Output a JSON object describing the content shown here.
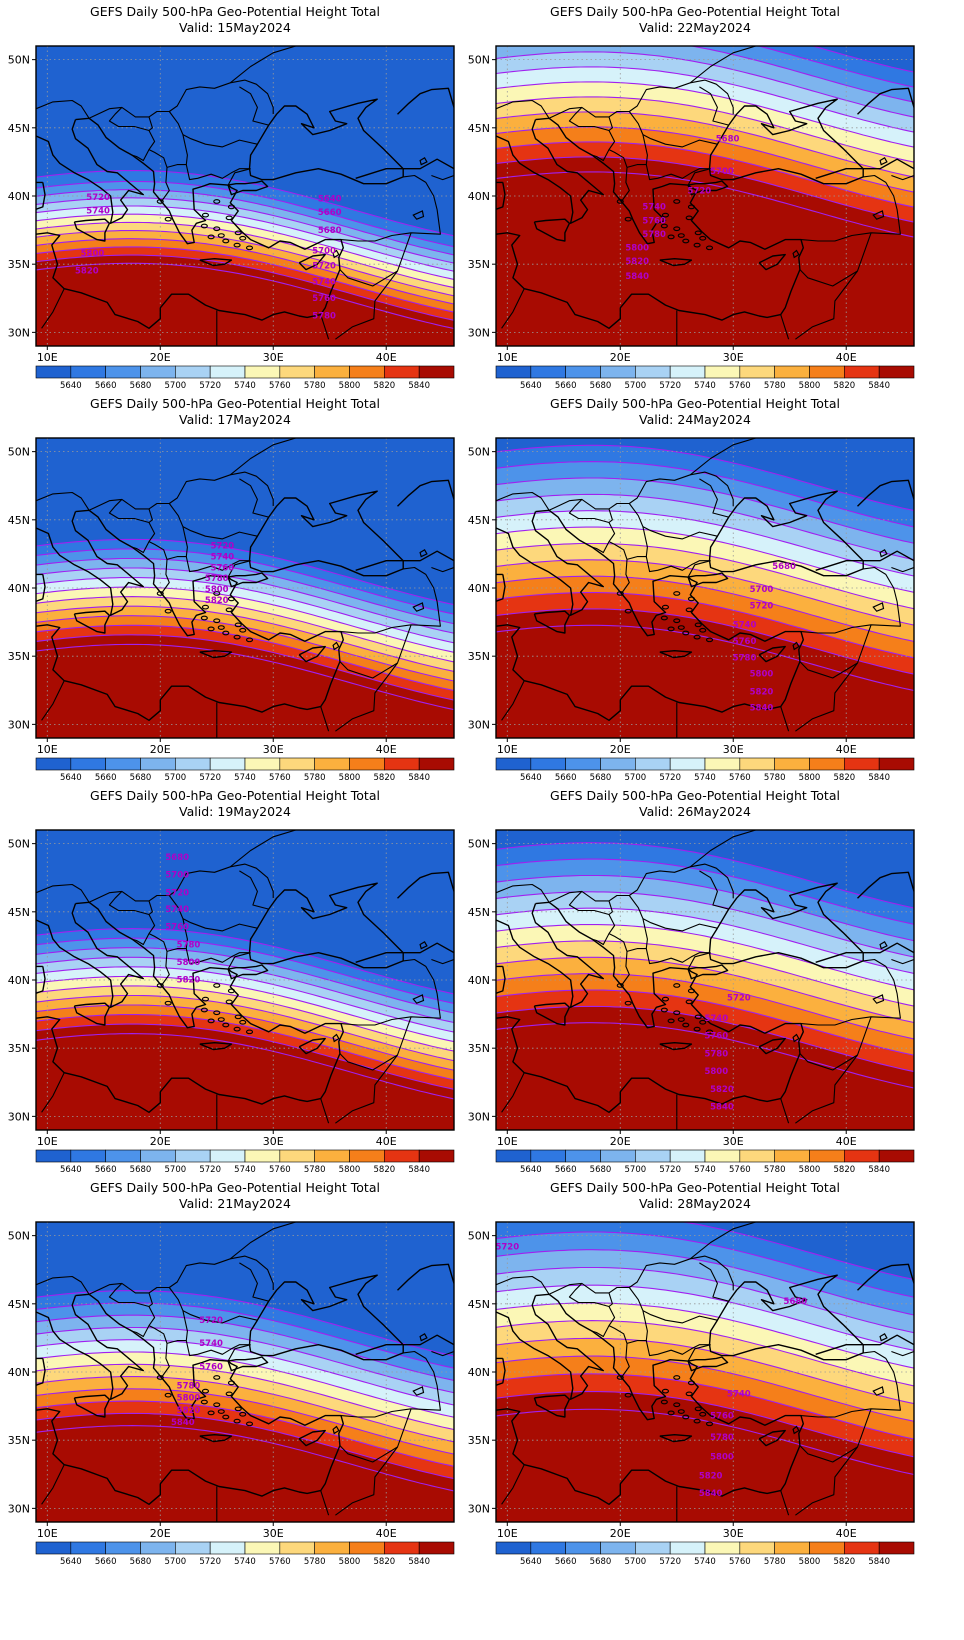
{
  "title_line1": "GEFS Daily 500-hPa Geo-Potential Height Total",
  "valid_prefix": "Valid:",
  "lat_ticks": [
    {
      "v": 50,
      "t": "50N"
    },
    {
      "v": 45,
      "t": "45N"
    },
    {
      "v": 40,
      "t": "40N"
    },
    {
      "v": 35,
      "t": "35N"
    },
    {
      "v": 30,
      "t": "30N"
    }
  ],
  "lon_ticks": [
    {
      "v": 10,
      "t": "10E"
    },
    {
      "v": 20,
      "t": "20E"
    },
    {
      "v": 30,
      "t": "30E"
    },
    {
      "v": 40,
      "t": "40E"
    }
  ],
  "map_extent": {
    "lon": [
      9,
      46
    ],
    "lat": [
      29,
      51
    ]
  },
  "colorbar": {
    "levels": [
      "5640",
      "5660",
      "5680",
      "5700",
      "5720",
      "5740",
      "5760",
      "5780",
      "5800",
      "5820",
      "5840"
    ],
    "colors": [
      "#1f62d0",
      "#2f78e2",
      "#4d93ea",
      "#7db4ee",
      "#a9d2f4",
      "#d6f2fa",
      "#fbf7b6",
      "#fdd87c",
      "#fbb03e",
      "#f57f1a",
      "#e53412",
      "#a80b02"
    ]
  },
  "contour_color": "#a020f0",
  "panels": [
    {
      "date": "15May2024",
      "offsets": [
        32.8,
        33.4,
        34.0,
        34.6,
        35.2,
        35.8,
        36.4,
        37.0,
        37.6,
        38.2,
        38.8,
        39.6
      ],
      "labels": [
        {
          "t": "5720",
          "lon": 14.5,
          "lat": 39.7
        },
        {
          "t": "5740",
          "lon": 14.5,
          "lat": 38.7
        },
        {
          "t": "5800",
          "lon": 14.0,
          "lat": 35.6
        },
        {
          "t": "5820",
          "lon": 13.5,
          "lat": 34.3
        },
        {
          "t": "5640",
          "lon": 35.0,
          "lat": 39.6
        },
        {
          "t": "5660",
          "lon": 35.0,
          "lat": 38.6
        },
        {
          "t": "5680",
          "lon": 35.0,
          "lat": 37.3
        },
        {
          "t": "5700",
          "lon": 34.5,
          "lat": 35.8
        },
        {
          "t": "5720",
          "lon": 34.5,
          "lat": 34.7
        },
        {
          "t": "5740",
          "lon": 34.5,
          "lat": 33.5
        },
        {
          "t": "5760",
          "lon": 34.5,
          "lat": 32.3
        },
        {
          "t": "5780",
          "lon": 34.5,
          "lat": 31.0
        }
      ]
    },
    {
      "date": "22May2024",
      "offsets": [
        39.5,
        40.6,
        41.7,
        42.8,
        43.9,
        45.0,
        46.1,
        47.2,
        48.3,
        49.4,
        50.5,
        51.6
      ],
      "labels": [
        {
          "t": "5680",
          "lon": 29.5,
          "lat": 44.0
        },
        {
          "t": "5700",
          "lon": 29.0,
          "lat": 41.6
        },
        {
          "t": "5720",
          "lon": 27.0,
          "lat": 40.2
        },
        {
          "t": "5740",
          "lon": 23.0,
          "lat": 39.0
        },
        {
          "t": "5760",
          "lon": 23.0,
          "lat": 38.0
        },
        {
          "t": "5780",
          "lon": 23.0,
          "lat": 37.0
        },
        {
          "t": "5800",
          "lon": 21.5,
          "lat": 36.0
        },
        {
          "t": "5820",
          "lon": 21.5,
          "lat": 35.0
        },
        {
          "t": "5840",
          "lon": 21.5,
          "lat": 33.9
        }
      ]
    },
    {
      "date": "17May2024",
      "offsets": [
        33.6,
        34.3,
        35.0,
        35.7,
        36.4,
        37.1,
        37.8,
        38.5,
        39.2,
        39.9,
        40.6,
        41.3
      ],
      "labels": [
        {
          "t": "5720",
          "lon": 25.5,
          "lat": 42.9
        },
        {
          "t": "5740",
          "lon": 25.5,
          "lat": 42.1
        },
        {
          "t": "5760",
          "lon": 25.5,
          "lat": 41.3
        },
        {
          "t": "5780",
          "lon": 25.0,
          "lat": 40.5
        },
        {
          "t": "5800",
          "lon": 25.0,
          "lat": 39.7
        },
        {
          "t": "5820",
          "lon": 25.0,
          "lat": 38.9
        }
      ]
    },
    {
      "date": "24May2024",
      "offsets": [
        35.0,
        36.2,
        37.4,
        38.6,
        39.8,
        41.0,
        42.2,
        43.4,
        44.6,
        45.8,
        47.0,
        48.2
      ],
      "labels": [
        {
          "t": "5680",
          "lon": 34.5,
          "lat": 41.4
        },
        {
          "t": "5700",
          "lon": 32.5,
          "lat": 39.7
        },
        {
          "t": "5720",
          "lon": 32.5,
          "lat": 38.5
        },
        {
          "t": "5740",
          "lon": 31.0,
          "lat": 37.1
        },
        {
          "t": "5760",
          "lon": 31.0,
          "lat": 35.9
        },
        {
          "t": "5780",
          "lon": 31.0,
          "lat": 34.7
        },
        {
          "t": "5800",
          "lon": 32.5,
          "lat": 33.5
        },
        {
          "t": "5820",
          "lon": 32.5,
          "lat": 32.2
        },
        {
          "t": "5840",
          "lon": 32.5,
          "lat": 31.0
        }
      ]
    },
    {
      "date": "19May2024",
      "offsets": [
        33.8,
        34.5,
        35.2,
        35.9,
        36.6,
        37.3,
        38.0,
        38.7,
        39.4,
        40.1,
        40.8,
        41.5
      ],
      "labels": [
        {
          "t": "5680",
          "lon": 21.5,
          "lat": 48.8
        },
        {
          "t": "5700",
          "lon": 21.5,
          "lat": 47.5
        },
        {
          "t": "5720",
          "lon": 21.5,
          "lat": 46.2
        },
        {
          "t": "5740",
          "lon": 21.5,
          "lat": 45.0
        },
        {
          "t": "5760",
          "lon": 21.5,
          "lat": 43.7
        },
        {
          "t": "5780",
          "lon": 22.5,
          "lat": 42.4
        },
        {
          "t": "5800",
          "lon": 22.5,
          "lat": 41.1
        },
        {
          "t": "5820",
          "lon": 22.5,
          "lat": 39.8
        }
      ]
    },
    {
      "date": "26May2024",
      "offsets": [
        34.6,
        35.8,
        37.0,
        38.2,
        39.4,
        40.6,
        41.8,
        43.0,
        44.2,
        45.4,
        46.6,
        47.8
      ],
      "labels": [
        {
          "t": "5720",
          "lon": 30.5,
          "lat": 38.5
        },
        {
          "t": "5740",
          "lon": 28.5,
          "lat": 37.0
        },
        {
          "t": "5760",
          "lon": 28.5,
          "lat": 35.7
        },
        {
          "t": "5780",
          "lon": 28.5,
          "lat": 34.4
        },
        {
          "t": "5800",
          "lon": 28.5,
          "lat": 33.1
        },
        {
          "t": "5820",
          "lon": 29.0,
          "lat": 31.8
        },
        {
          "t": "5840",
          "lon": 29.0,
          "lat": 30.5
        }
      ]
    },
    {
      "date": "21May2024",
      "offsets": [
        33.8,
        34.7,
        35.6,
        36.5,
        37.4,
        38.3,
        39.2,
        40.1,
        41.0,
        41.9,
        42.8,
        43.7
      ],
      "labels": [
        {
          "t": "5720",
          "lon": 24.5,
          "lat": 43.6
        },
        {
          "t": "5740",
          "lon": 24.5,
          "lat": 41.9
        },
        {
          "t": "5760",
          "lon": 24.5,
          "lat": 40.2
        },
        {
          "t": "5780",
          "lon": 22.5,
          "lat": 38.8
        },
        {
          "t": "5800",
          "lon": 22.5,
          "lat": 37.9
        },
        {
          "t": "5820",
          "lon": 22.5,
          "lat": 37.0
        },
        {
          "t": "5840",
          "lon": 22.0,
          "lat": 36.1
        }
      ]
    },
    {
      "date": "28May2024",
      "offsets": [
        35.0,
        36.3,
        37.6,
        38.9,
        40.2,
        41.5,
        42.8,
        44.1,
        45.4,
        46.7,
        48.0,
        49.3
      ],
      "labels": [
        {
          "t": "5720",
          "lon": 10.0,
          "lat": 49.0
        },
        {
          "t": "5680",
          "lon": 35.5,
          "lat": 45.0
        },
        {
          "t": "5740",
          "lon": 30.5,
          "lat": 38.2
        },
        {
          "t": "5760",
          "lon": 29.0,
          "lat": 36.6
        },
        {
          "t": "5780",
          "lon": 29.0,
          "lat": 35.0
        },
        {
          "t": "5800",
          "lon": 29.0,
          "lat": 33.6
        },
        {
          "t": "5820",
          "lon": 28.0,
          "lat": 32.2
        },
        {
          "t": "5840",
          "lon": 28.0,
          "lat": 30.9
        }
      ]
    }
  ]
}
